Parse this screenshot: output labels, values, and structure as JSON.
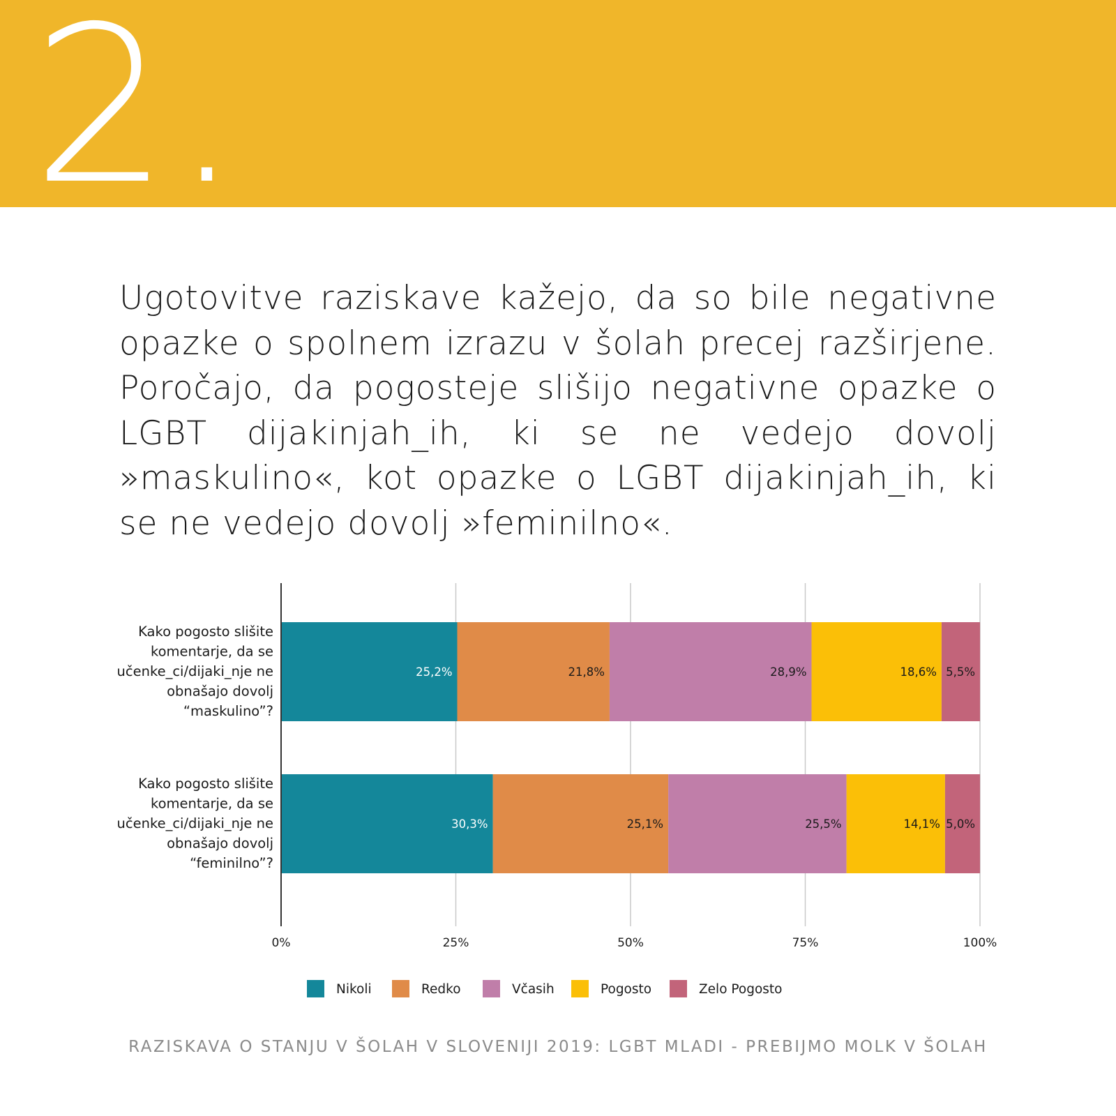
{
  "header": {
    "section_number": "2.",
    "banner_color": "#f0b62a"
  },
  "intro": {
    "text": "Ugotovitve raziskave kažejo, da so bile negativne opazke o spolnem izrazu v šolah precej razširjene. Poročajo, da pogosteje slišijo negativne opazke o LGBT dijakinjah_ih, ki se ne vedejo dovolj »maskulino«, kot opazke o LGBT dijakinjah_ih, ki se ne vedejo dovolj »feminilno«."
  },
  "chart_data": {
    "type": "bar",
    "orientation": "horizontal",
    "stacked": true,
    "categories": [
      [
        "Kako pogosto slišite",
        "komentarje, da se",
        "učenke_ci/dijaki_nje ne",
        "obnašajo dovolj",
        "“maskulino”?"
      ],
      [
        "Kako pogosto slišite",
        "komentarje, da se",
        "učenke_ci/dijaki_nje ne",
        "obnašajo dovolj",
        "“feminilno”?"
      ]
    ],
    "series": [
      {
        "name": "Nikoli",
        "color": "#14879a",
        "values": [
          25.2,
          30.3
        ],
        "labels": [
          "25,2%",
          "30,3%"
        ],
        "label_color": "#ffffff"
      },
      {
        "name": "Redko",
        "color": "#e08b48",
        "values": [
          21.8,
          25.1
        ],
        "labels": [
          "21,8%",
          "25,1%"
        ],
        "label_color": "#1a1a1a"
      },
      {
        "name": "Včasih",
        "color": "#c07ea9",
        "values": [
          28.9,
          25.5
        ],
        "labels": [
          "28,9%",
          "25,5%"
        ],
        "label_color": "#1a1a1a"
      },
      {
        "name": "Pogosto",
        "color": "#fbbf07",
        "values": [
          18.6,
          14.1
        ],
        "labels": [
          "18,6%",
          "14,1%"
        ],
        "label_color": "#1a1a1a"
      },
      {
        "name": "Zelo Pogosto",
        "color": "#c2647a",
        "values": [
          5.5,
          5.0
        ],
        "labels": [
          "5,5%",
          "5,0%"
        ],
        "label_color": "#1a1a1a"
      }
    ],
    "xlim": [
      0,
      100
    ],
    "xticks": [
      0,
      25,
      50,
      75,
      100
    ],
    "xtick_labels": [
      "0%",
      "25%",
      "50%",
      "75%",
      "100%"
    ],
    "grid": true,
    "legend": "bottom",
    "title": "",
    "xlabel": "",
    "ylabel": ""
  },
  "footer": {
    "text": "RAZISKAVA O STANJU V ŠOLAH V SLOVENIJI 2019: LGBT MLADI - PREBIJMO MOLK V ŠOLAH"
  }
}
